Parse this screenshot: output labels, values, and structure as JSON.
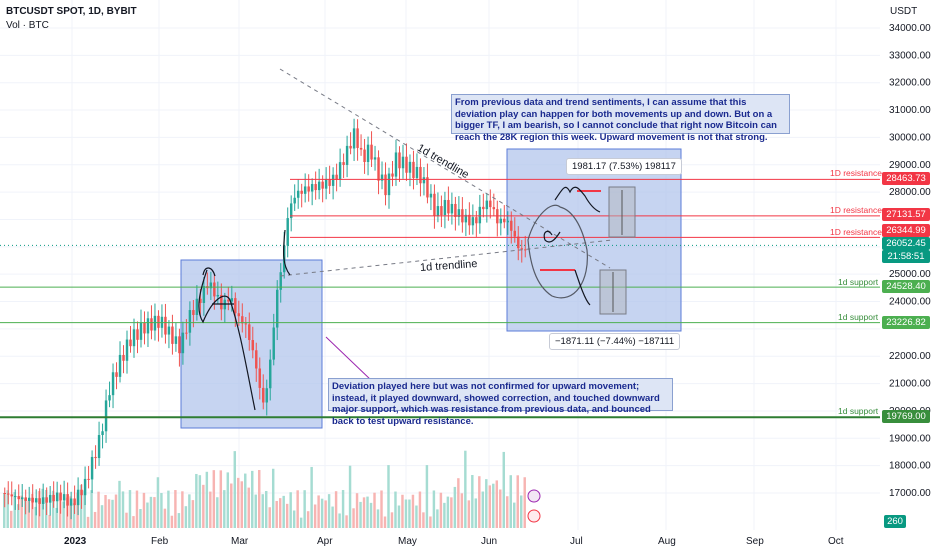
{
  "header": {
    "symbol": "BTCUSDT SPOT, 1D, BYBIT",
    "volume_label": "Vol · BTC"
  },
  "price_axis": {
    "currency": "USDT",
    "ticks": [
      "34000.00",
      "33000.00",
      "32000.00",
      "31000.00",
      "30000.00",
      "29000.00",
      "28000.00",
      "25000.00",
      "24000.00",
      "22000.00",
      "21000.00",
      "20000.00",
      "19000.00",
      "18000.00",
      "17000.00"
    ]
  },
  "time_axis": {
    "labels": [
      "2023",
      "Feb",
      "Mar",
      "Apr",
      "May",
      "Jun",
      "Jul",
      "Aug",
      "Sep",
      "Oct"
    ]
  },
  "price_tags": [
    {
      "value": "28463.73",
      "color": "#f23645"
    },
    {
      "value": "27131.57",
      "color": "#f23645"
    },
    {
      "value": "26344.99",
      "color": "#f23645"
    },
    {
      "value": "26052.45",
      "color": "#089981"
    },
    {
      "value": "21:58:51",
      "color": "#089981"
    },
    {
      "value": "24528.40",
      "color": "#4caf50"
    },
    {
      "value": "23226.82",
      "color": "#4caf50"
    },
    {
      "value": "19769.00",
      "color": "#388e3c"
    },
    {
      "value": "260",
      "color": "#089981"
    }
  ],
  "levels": [
    {
      "label": "1D resistance",
      "color": "#f23645"
    },
    {
      "label": "1D resistance",
      "color": "#f23645"
    },
    {
      "label": "1D resistance",
      "color": "#f23645"
    },
    {
      "label": "1d support",
      "color": "#388e3c"
    },
    {
      "label": "1d support",
      "color": "#388e3c"
    },
    {
      "label": "1d support",
      "color": "#388e3c"
    }
  ],
  "annotations": {
    "trendline_top": "1d trendline",
    "trendline_bottom": "1d trendline",
    "note_top": "From previous data and trend sentiments, I can assume that this deviation play can happen for both movements up and down. But on a bigger TF, I am bearish, so I cannot conclude that right now Bitcoin can reach the 28K region this week. Upward movement is not that strong.",
    "note_bottom": "Deviation played here but was not confirmed for upward movement; instead, it played downward, showed correction, and touched downward major support, which was resistance from previous data, and bounced back to test upward resistance.",
    "measure_up": "1981.17 (7.53%) 198117",
    "measure_down": "−1871.11 (−7.44%) −187111"
  },
  "colors": {
    "up": "#26a69a",
    "down": "#ef5350",
    "resistance": "#f23645",
    "support": "#4caf50",
    "box": "#b3c5ec"
  }
}
